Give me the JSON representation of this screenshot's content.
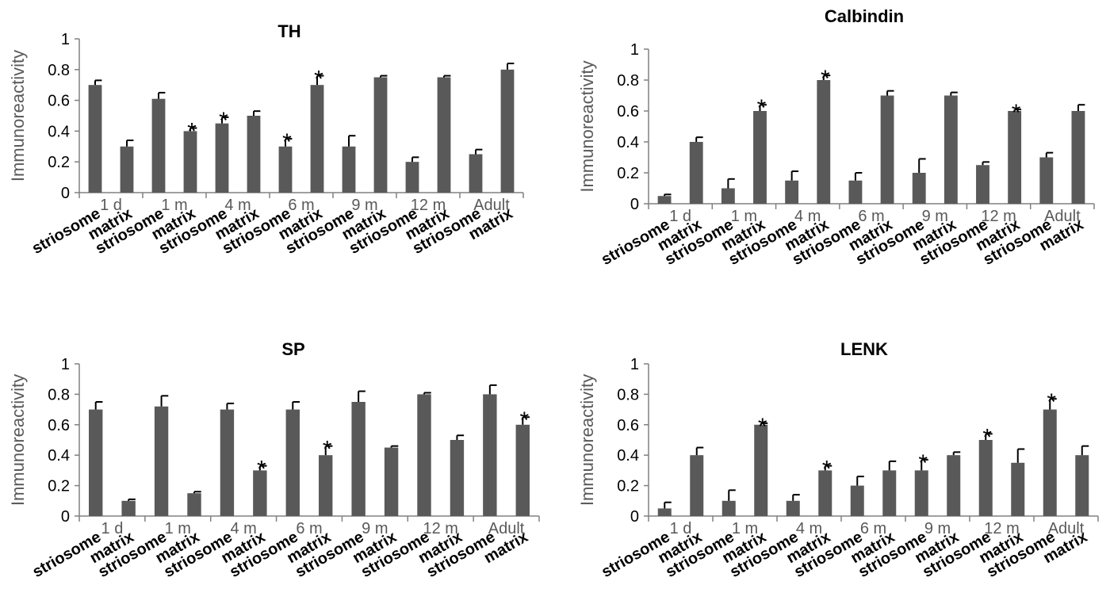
{
  "colors": {
    "bar": "#595959",
    "axis": "#808080",
    "text": "#000000",
    "axis_label": "#595959"
  },
  "chart_data": [
    {
      "type": "bar",
      "title": "TH",
      "ylabel": "Immunoreactivity",
      "xlabel": "",
      "ylim": [
        0,
        1
      ],
      "yticks": [
        "0",
        "0.2",
        "0.4",
        "0.6",
        "0.8",
        "1"
      ],
      "groups": [
        "1 d",
        "1 m",
        "4 m",
        "6 m",
        "9 m",
        "12 m",
        "Adult"
      ],
      "categories": [
        "striosome",
        "matrix",
        "striosome",
        "matrix",
        "striosome",
        "matrix",
        "striosome",
        "matrix",
        "striosome",
        "matrix",
        "striosome",
        "matrix",
        "striosome",
        "matrix"
      ],
      "values": [
        0.7,
        0.3,
        0.61,
        0.4,
        0.45,
        0.5,
        0.3,
        0.7,
        0.3,
        0.75,
        0.2,
        0.75,
        0.25,
        0.8
      ],
      "errors": [
        0.03,
        0.04,
        0.04,
        0.02,
        0.04,
        0.03,
        0.05,
        0.06,
        0.07,
        0.01,
        0.03,
        0.01,
        0.03,
        0.04
      ],
      "significance": [
        "",
        "",
        "",
        "*",
        "*",
        "",
        "*",
        "*",
        "",
        "",
        "",
        "",
        "",
        ""
      ]
    },
    {
      "type": "bar",
      "title": "Calbindin",
      "ylabel": "Immunoreactivity",
      "xlabel": "",
      "ylim": [
        0,
        1
      ],
      "yticks": [
        "0",
        "0.2",
        "0.4",
        "0.6",
        "0.8",
        "1"
      ],
      "groups": [
        "1 d",
        "1 m",
        "4 m",
        "6 m",
        "9 m",
        "12 m",
        "Adult"
      ],
      "categories": [
        "striosome",
        "matrix",
        "striosome",
        "matrix",
        "striosome",
        "matrix",
        "striosome",
        "matrix",
        "striosome",
        "matrix",
        "striosome",
        "matrix",
        "striosome",
        "matrix"
      ],
      "values": [
        0.05,
        0.4,
        0.1,
        0.6,
        0.15,
        0.8,
        0.15,
        0.7,
        0.2,
        0.7,
        0.25,
        0.6,
        0.3,
        0.6
      ],
      "errors": [
        0.01,
        0.03,
        0.06,
        0.04,
        0.06,
        0.03,
        0.05,
        0.03,
        0.09,
        0.02,
        0.02,
        0.01,
        0.03,
        0.04
      ],
      "significance": [
        "",
        "",
        "",
        "*",
        "",
        "*",
        "",
        "",
        "",
        "",
        "",
        "*",
        "",
        ""
      ]
    },
    {
      "type": "bar",
      "title": "SP",
      "ylabel": "Immunoreactivity",
      "xlabel": "",
      "ylim": [
        0,
        1
      ],
      "yticks": [
        "0",
        "0.2",
        "0.4",
        "0.6",
        "0.8",
        "1"
      ],
      "groups": [
        "1 d",
        "1 m",
        "4 m",
        "6 m",
        "9 m",
        "12 m",
        "Adult"
      ],
      "categories": [
        "striosome",
        "matrix",
        "striosome",
        "matrix",
        "striosome",
        "matrix",
        "striosome",
        "matrix",
        "striosome",
        "matrix",
        "striosome",
        "matrix",
        "striosome",
        "matrix"
      ],
      "values": [
        0.7,
        0.1,
        0.72,
        0.15,
        0.7,
        0.3,
        0.7,
        0.4,
        0.75,
        0.45,
        0.8,
        0.5,
        0.8,
        0.6
      ],
      "errors": [
        0.05,
        0.01,
        0.07,
        0.01,
        0.04,
        0.03,
        0.05,
        0.06,
        0.07,
        0.01,
        0.01,
        0.03,
        0.06,
        0.05
      ],
      "significance": [
        "",
        "",
        "",
        "",
        "",
        "*",
        "",
        "*",
        "",
        "",
        "",
        "",
        "",
        "*"
      ]
    },
    {
      "type": "bar",
      "title": "LENK",
      "ylabel": "Immunoreactivity",
      "xlabel": "",
      "ylim": [
        0,
        1
      ],
      "yticks": [
        "0",
        "0.2",
        "0.4",
        "0.6",
        "0.8",
        "1"
      ],
      "groups": [
        "1 d",
        "1 m",
        "4 m",
        "6 m",
        "9 m",
        "12 m",
        "Adult"
      ],
      "categories": [
        "striosome",
        "matrix",
        "striosome",
        "matrix",
        "striosome",
        "matrix",
        "striosome",
        "matrix",
        "striosome",
        "matrix",
        "striosome",
        "matrix",
        "striosome",
        "matrix"
      ],
      "values": [
        0.05,
        0.4,
        0.1,
        0.6,
        0.1,
        0.3,
        0.2,
        0.3,
        0.3,
        0.4,
        0.5,
        0.35,
        0.7,
        0.4
      ],
      "errors": [
        0.04,
        0.05,
        0.07,
        0.01,
        0.04,
        0.03,
        0.06,
        0.06,
        0.07,
        0.02,
        0.04,
        0.09,
        0.07,
        0.06
      ],
      "significance": [
        "",
        "",
        "",
        "*",
        "",
        "*",
        "",
        "",
        "*",
        "",
        "*",
        "",
        "*",
        ""
      ]
    }
  ]
}
